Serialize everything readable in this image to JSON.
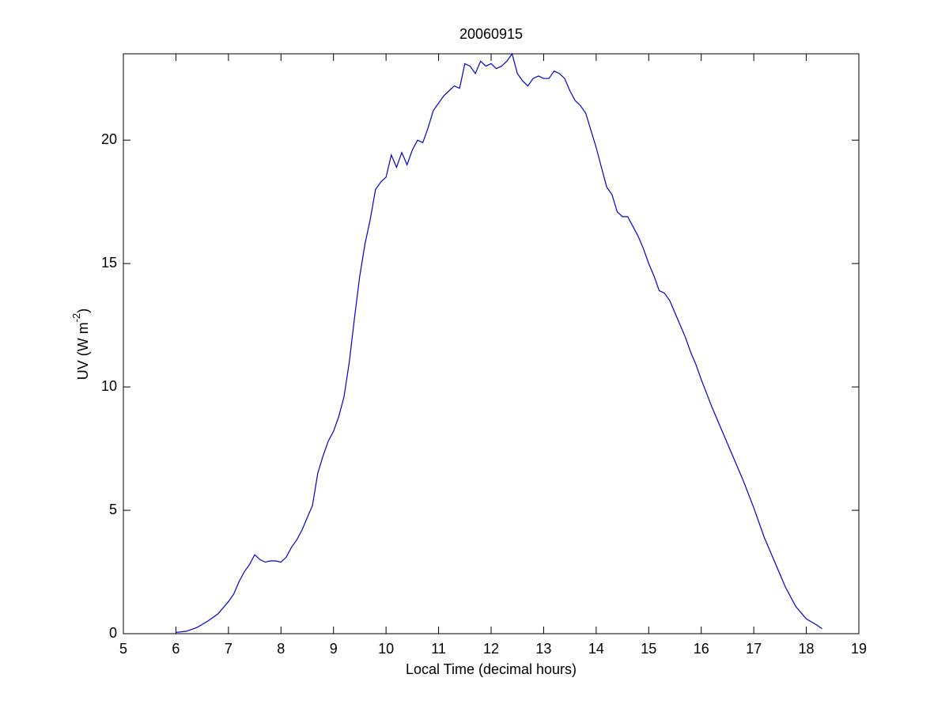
{
  "chart_data": {
    "type": "line",
    "title": "20060915",
    "x_label": "Local Time (decimal hours)",
    "y_label": {
      "text": "UV (W m",
      "superscript": "-2",
      "suffix": ")"
    },
    "xlim": [
      5,
      19
    ],
    "xticks": [
      5,
      6,
      7,
      8,
      9,
      10,
      11,
      12,
      13,
      14,
      15,
      16,
      17,
      18,
      19
    ],
    "ylim": [
      0,
      23.5
    ],
    "yticks": [
      0,
      5,
      10,
      15,
      20
    ],
    "grid": false,
    "series": [
      {
        "color": "#0000cc",
        "x": [
          6.0,
          6.2,
          6.4,
          6.6,
          6.8,
          7.0,
          7.1,
          7.2,
          7.3,
          7.4,
          7.5,
          7.6,
          7.7,
          7.8,
          7.9,
          8.0,
          8.1,
          8.2,
          8.3,
          8.4,
          8.5,
          8.6,
          8.7,
          8.8,
          8.9,
          9.0,
          9.1,
          9.2,
          9.3,
          9.4,
          9.5,
          9.6,
          9.7,
          9.8,
          9.9,
          10.0,
          10.1,
          10.2,
          10.3,
          10.4,
          10.5,
          10.6,
          10.7,
          10.8,
          10.9,
          11.0,
          11.1,
          11.2,
          11.3,
          11.4,
          11.5,
          11.6,
          11.7,
          11.8,
          11.9,
          12.0,
          12.1,
          12.2,
          12.3,
          12.4,
          12.5,
          12.6,
          12.7,
          12.8,
          12.9,
          13.0,
          13.1,
          13.2,
          13.3,
          13.4,
          13.5,
          13.6,
          13.7,
          13.8,
          13.9,
          14.0,
          14.1,
          14.2,
          14.3,
          14.4,
          14.5,
          14.6,
          14.7,
          14.8,
          14.9,
          15.0,
          15.1,
          15.2,
          15.3,
          15.4,
          15.5,
          15.6,
          15.7,
          15.8,
          15.9,
          16.0,
          16.2,
          16.4,
          16.6,
          16.8,
          17.0,
          17.2,
          17.4,
          17.6,
          17.8,
          18.0,
          18.2,
          18.3
        ],
        "values": [
          0.05,
          0.1,
          0.25,
          0.5,
          0.8,
          1.3,
          1.6,
          2.1,
          2.5,
          2.8,
          3.2,
          3.0,
          2.9,
          2.95,
          2.95,
          2.9,
          3.1,
          3.5,
          3.8,
          4.2,
          4.7,
          5.2,
          6.5,
          7.2,
          7.8,
          8.2,
          8.8,
          9.6,
          11.0,
          12.8,
          14.5,
          15.8,
          16.8,
          18.0,
          18.3,
          18.5,
          19.4,
          18.9,
          19.5,
          19.0,
          19.6,
          20.0,
          19.9,
          20.5,
          21.2,
          21.5,
          21.8,
          22.0,
          22.2,
          22.1,
          23.1,
          23.0,
          22.7,
          23.2,
          23.0,
          23.1,
          22.9,
          23.0,
          23.2,
          23.5,
          22.7,
          22.4,
          22.2,
          22.5,
          22.6,
          22.5,
          22.5,
          22.8,
          22.7,
          22.5,
          22.0,
          21.6,
          21.4,
          21.1,
          20.4,
          19.7,
          18.9,
          18.1,
          17.8,
          17.1,
          16.9,
          16.9,
          16.5,
          16.1,
          15.6,
          15.0,
          14.5,
          13.9,
          13.8,
          13.5,
          13.0,
          12.5,
          12.0,
          11.4,
          10.9,
          10.3,
          9.2,
          8.2,
          7.2,
          6.2,
          5.1,
          3.9,
          2.9,
          1.9,
          1.1,
          0.6,
          0.35,
          0.2
        ]
      }
    ]
  }
}
